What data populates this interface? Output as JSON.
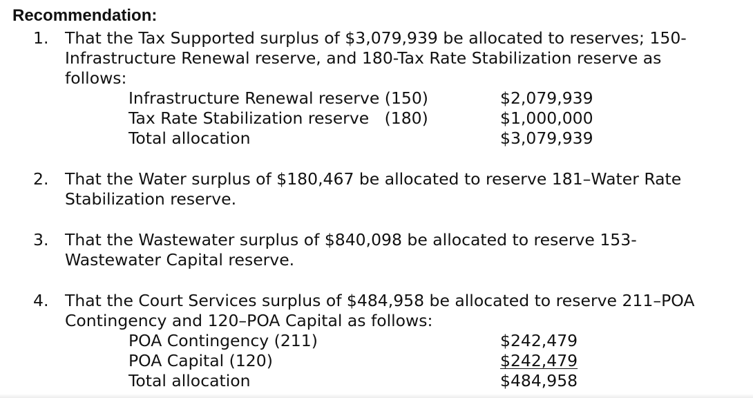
{
  "heading": "Recommendation:",
  "items": [
    {
      "number": "1.",
      "lines": [
        "That the Tax Supported surplus of $3,079,939 be allocated to reserves; 150-",
        "Infrastructure Renewal reserve, and 180-Tax Rate Stabilization reserve as",
        "follows:"
      ],
      "allocations": [
        {
          "label": "Infrastructure Renewal reserve (150)",
          "amount": "$2,079,939"
        },
        {
          "label": "Tax Rate Stabilization reserve   (180)",
          "amount": "$1,000,000"
        },
        {
          "label": "Total allocation",
          "amount": "$3,079,939"
        }
      ]
    },
    {
      "number": "2.",
      "lines": [
        "That the Water surplus of $180,467 be allocated to reserve 181–Water Rate",
        "Stabilization reserve."
      ]
    },
    {
      "number": "3.",
      "lines": [
        "That the Wastewater surplus of $840,098 be allocated to reserve 153-",
        "Wastewater Capital reserve."
      ]
    },
    {
      "number": "4.",
      "lines": [
        "That the Court Services surplus of $484,958 be allocated to reserve 211–POA",
        "Contingency and 120–POA Capital as follows:"
      ],
      "allocations": [
        {
          "label": "POA Contingency (211)",
          "amount": "$242,479"
        },
        {
          "label": "POA Capital (120)",
          "amount": "$242,479"
        },
        {
          "label": "Total allocation",
          "amount": "$484,958"
        }
      ]
    }
  ]
}
